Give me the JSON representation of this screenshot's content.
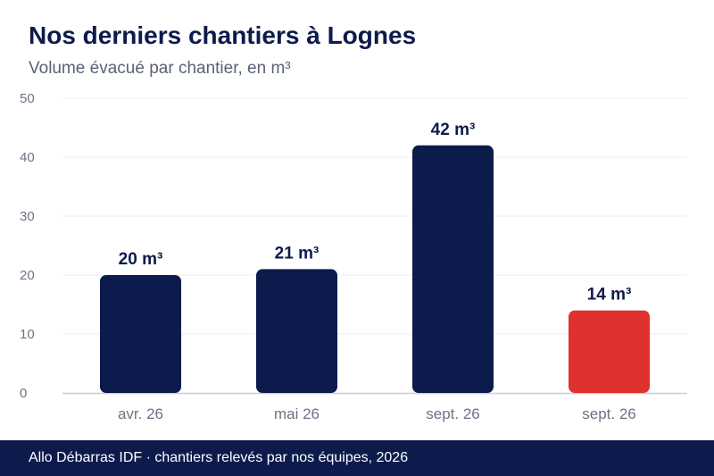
{
  "header": {
    "title": "Nos derniers chantiers à Lognes",
    "subtitle": "Volume évacué par chantier, en m³"
  },
  "footer": {
    "text": "Allo Débarras IDF · chantiers relevés par nos équipes, 2026"
  },
  "colors": {
    "bar": "#0d1b4c",
    "highlight": "#e03131",
    "grid": "#eeeeee",
    "axis": "#c9cbe0",
    "tick_text": "#6b7385",
    "label_text": "#0d1b4c"
  },
  "chart_data": {
    "type": "bar",
    "title": "Nos derniers chantiers à Lognes",
    "subtitle": "Volume évacué par chantier, en m³",
    "xlabel": "",
    "ylabel": "",
    "categories": [
      "avr. 26",
      "mai 26",
      "sept. 26",
      "sept. 26"
    ],
    "values": [
      20,
      21,
      42,
      14
    ],
    "data_labels": [
      "20 m³",
      "21 m³",
      "42 m³",
      "14 m³"
    ],
    "highlight_index": 3,
    "ylim": [
      0,
      50
    ],
    "yticks": [
      0,
      10,
      20,
      30,
      40,
      50
    ],
    "grid": true,
    "legend": "none"
  }
}
